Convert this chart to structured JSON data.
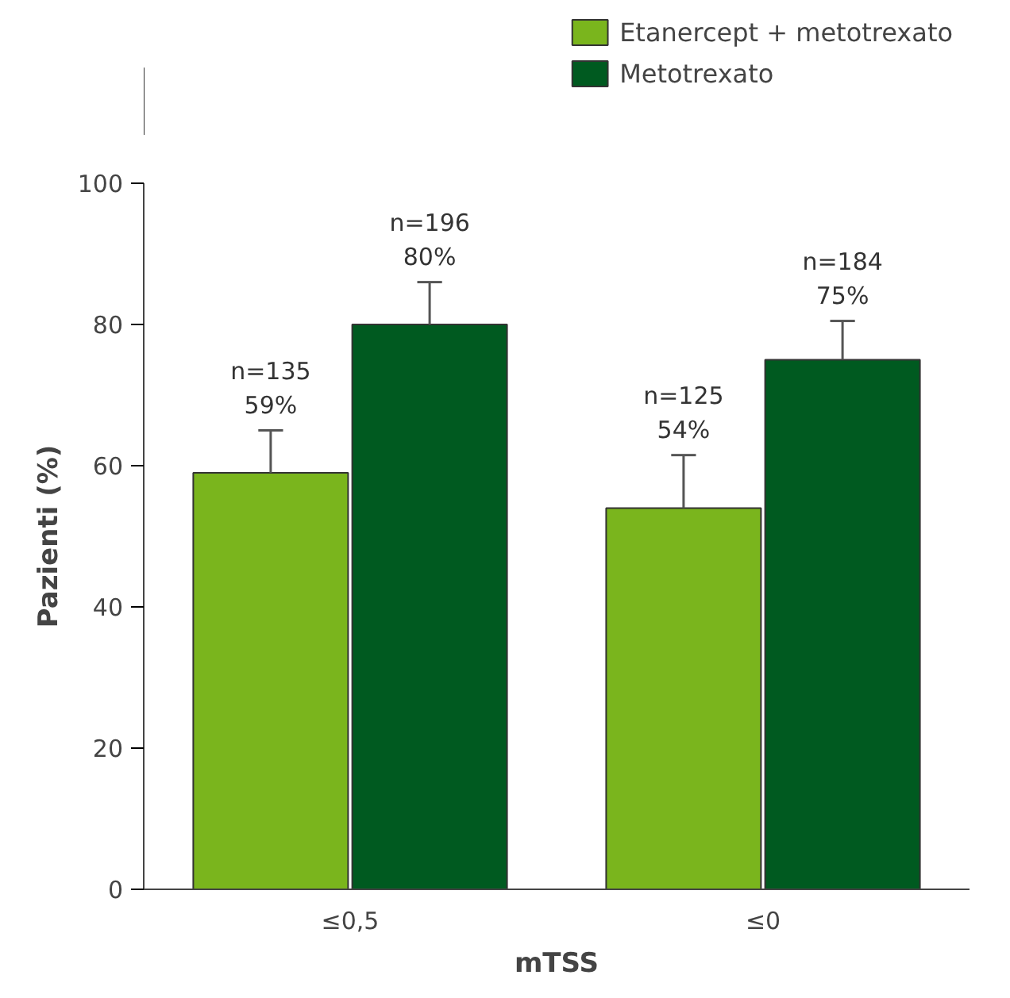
{
  "chart_data": {
    "type": "bar",
    "xlabel": "mTSS",
    "ylabel": "Pazienti (%)",
    "categories": [
      "≤0,5",
      "≤0"
    ],
    "series": [
      {
        "name": "Etanercept + metotrexato",
        "color": "#7ab51d",
        "values": [
          59,
          54
        ],
        "errors": [
          [
            59,
            65
          ],
          [
            54,
            61.5
          ]
        ],
        "value_labels": [
          "n=135\n59%",
          "n=125\n54%"
        ]
      },
      {
        "name": "Metotrexato",
        "color": "#005a20",
        "values": [
          80,
          75
        ],
        "errors": [
          [
            80,
            86
          ],
          [
            75,
            80.5
          ]
        ],
        "value_labels": [
          "n=196\n80%",
          "n=184\n75%"
        ]
      }
    ],
    "ylim": [
      0,
      100
    ],
    "yticks": [
      0,
      20,
      40,
      60,
      80,
      100
    ],
    "legend": "top right",
    "grid": false
  }
}
